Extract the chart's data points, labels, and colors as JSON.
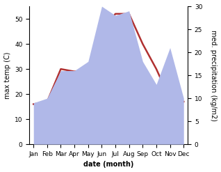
{
  "months": [
    "Jan",
    "Feb",
    "Mar",
    "Apr",
    "May",
    "Jun",
    "Jul",
    "Aug",
    "Sep",
    "Oct",
    "Nov",
    "Dec"
  ],
  "temperature": [
    16,
    17,
    30,
    29,
    30,
    45,
    52,
    52,
    40,
    30,
    18,
    17
  ],
  "precipitation": [
    9,
    10,
    16,
    16,
    18,
    30,
    28,
    29,
    18,
    13,
    21,
    10
  ],
  "temp_color": "#b03030",
  "precip_color": "#b0b8e8",
  "temp_ylim": [
    0,
    55
  ],
  "precip_ylim": [
    0,
    30
  ],
  "xlabel": "date (month)",
  "ylabel_left": "max temp (C)",
  "ylabel_right": "med. precipitation (kg/m2)",
  "bg_color": "#ffffff",
  "temp_linewidth": 1.8,
  "left_yticks": [
    0,
    10,
    20,
    30,
    40,
    50
  ],
  "right_yticks": [
    0,
    5,
    10,
    15,
    20,
    25,
    30
  ],
  "tick_fontsize": 6.5,
  "xlabel_fontsize": 7,
  "ylabel_fontsize": 7
}
